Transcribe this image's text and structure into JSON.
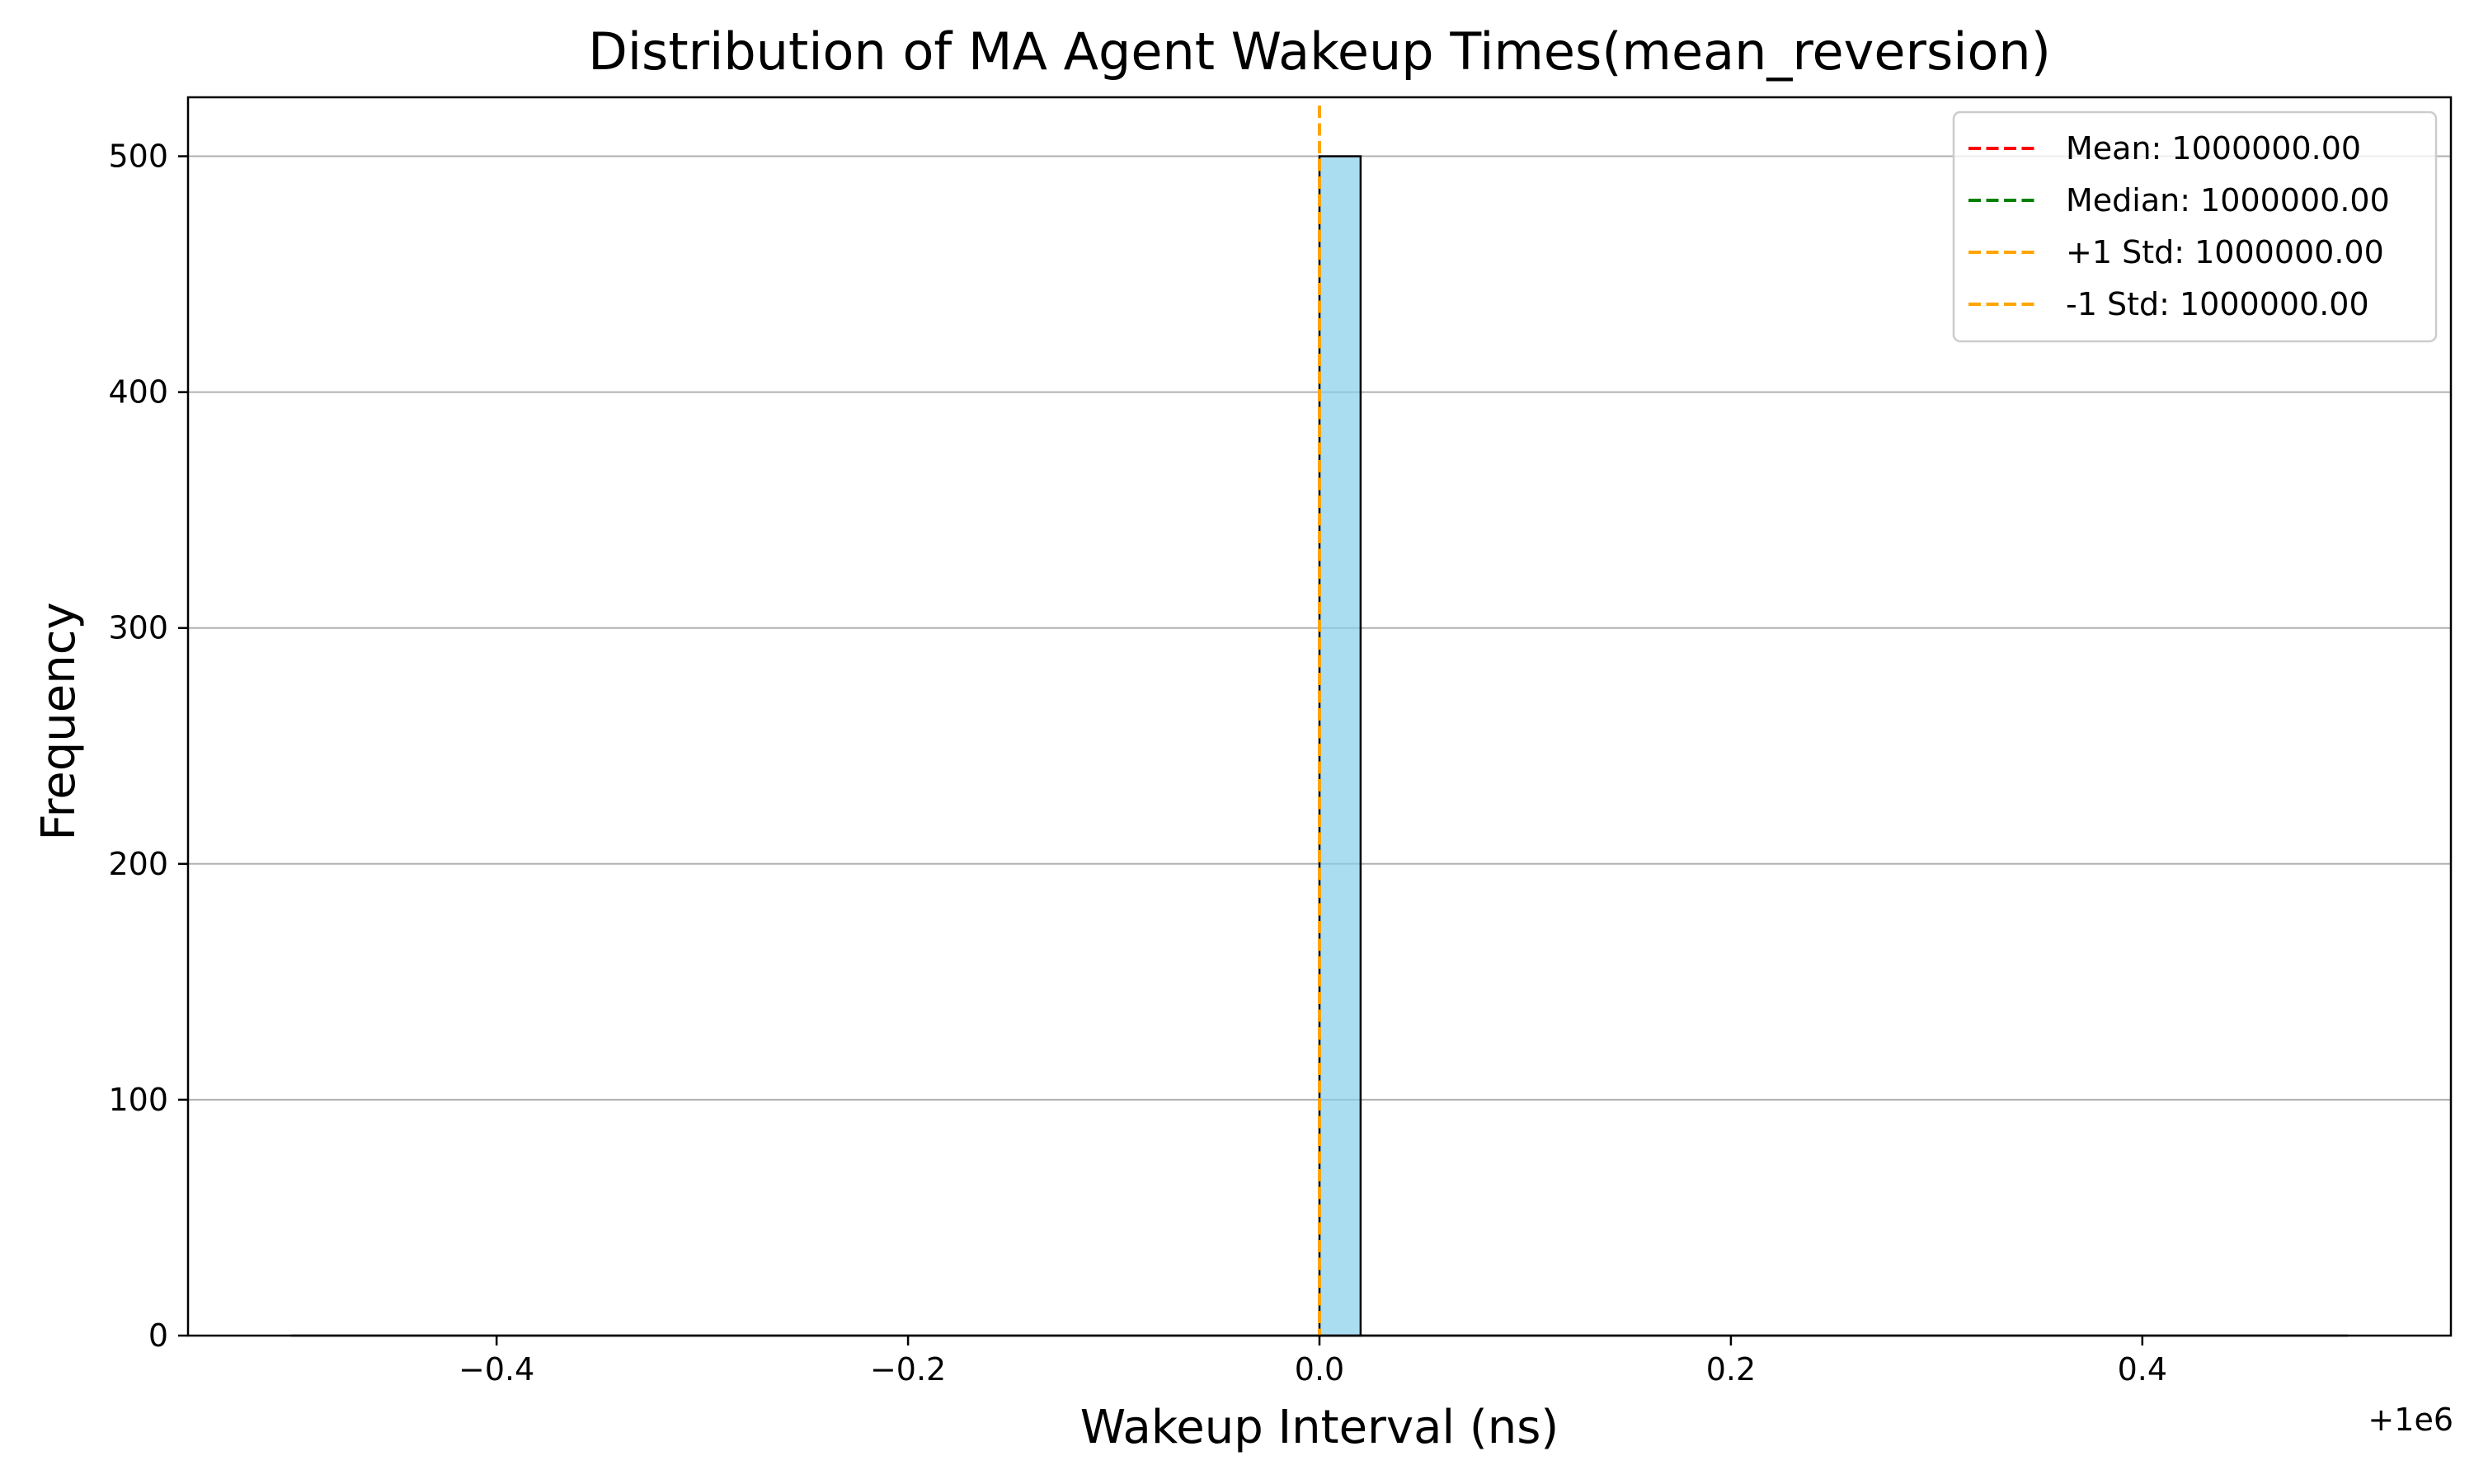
{
  "chart_data": {
    "type": "bar",
    "title": "Distribution of MA Agent Wakeup Times(mean_reversion)",
    "xlabel": "Wakeup Interval (ns)",
    "ylabel": "Frequency",
    "x_offset_label": "+1e6",
    "xlim": [
      -0.55,
      0.55
    ],
    "ylim": [
      0,
      525
    ],
    "xticks": [
      -0.4,
      -0.2,
      0.0,
      0.2,
      0.4
    ],
    "xtick_labels": [
      "−0.4",
      "−0.2",
      "0.0",
      "0.2",
      "0.4"
    ],
    "yticks": [
      0,
      100,
      200,
      300,
      400,
      500
    ],
    "ytick_labels": [
      "0",
      "100",
      "200",
      "300",
      "400",
      "500"
    ],
    "grid": "y",
    "histogram": {
      "range": [
        -0.5,
        0.5
      ],
      "bin_width": 0.02,
      "bins": [
        {
          "x0": 0.0,
          "x1": 0.02,
          "count": 500
        }
      ],
      "fill": "#87ceeb",
      "edge": "#000000"
    },
    "reference_lines": [
      {
        "label": "Mean: 1000000.00",
        "x": 0.0,
        "color": "#ff0000"
      },
      {
        "label": "Median: 1000000.00",
        "x": 0.0,
        "color": "#008000"
      },
      {
        "label": "+1 Std: 1000000.00",
        "x": 0.0,
        "color": "#ffa500"
      },
      {
        "label": "-1 Std: 1000000.00",
        "x": 0.0,
        "color": "#ffa500"
      }
    ],
    "legend_position": "top-right"
  }
}
